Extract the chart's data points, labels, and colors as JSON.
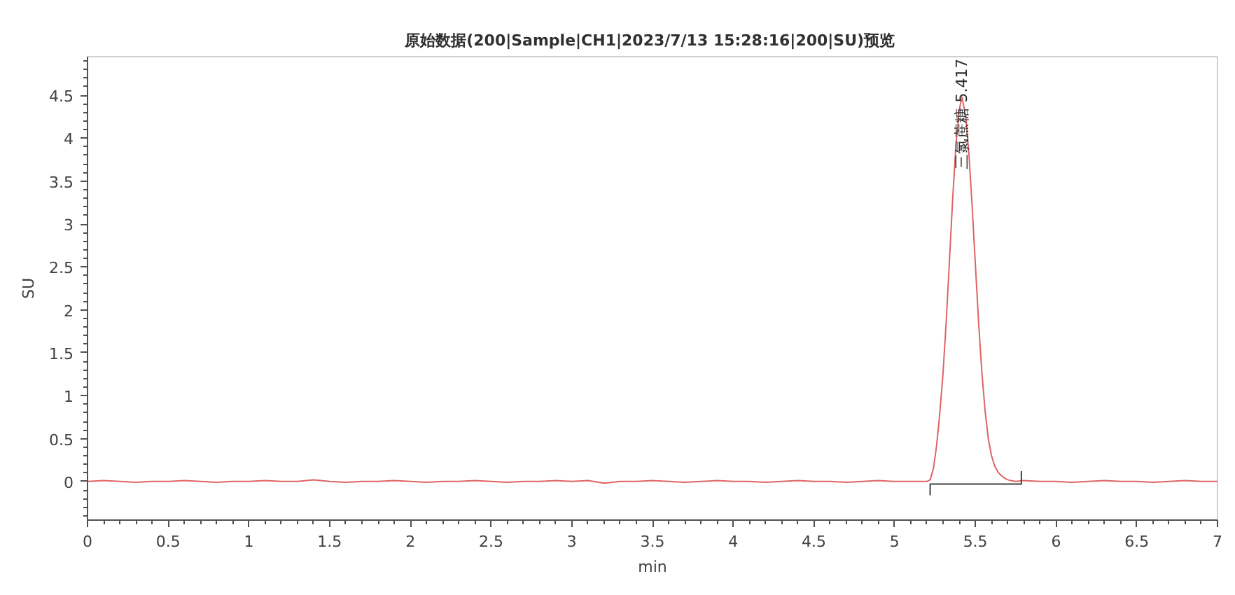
{
  "chart_data": {
    "type": "line",
    "title": "原始数据(200|Sample|CH1|2023/7/13  15:28:16|200|SU)预览",
    "xlabel": "min",
    "ylabel": "SU",
    "xlim": [
      0,
      7
    ],
    "ylim": [
      -0.45,
      4.95
    ],
    "xticks": [
      0,
      0.5,
      1,
      1.5,
      2,
      2.5,
      3,
      3.5,
      4,
      4.5,
      5,
      5.5,
      6,
      6.5,
      7
    ],
    "yticks": [
      0,
      0.5,
      1,
      1.5,
      2,
      2.5,
      3,
      3.5,
      4,
      4.5
    ],
    "line_style": "solid",
    "annotations": [
      {
        "text": "三氯蔗糖 5.417",
        "x": 5.417,
        "y": 4.48
      }
    ],
    "series": [
      {
        "color": "#e06464",
        "x": [
          0,
          0.1,
          0.2,
          0.3,
          0.4,
          0.5,
          0.6,
          0.7,
          0.8,
          0.9,
          1.0,
          1.1,
          1.2,
          1.3,
          1.4,
          1.5,
          1.6,
          1.7,
          1.8,
          1.9,
          2.0,
          2.1,
          2.2,
          2.3,
          2.4,
          2.5,
          2.6,
          2.7,
          2.8,
          2.9,
          3.0,
          3.1,
          3.2,
          3.3,
          3.4,
          3.5,
          3.6,
          3.7,
          3.8,
          3.9,
          4.0,
          4.1,
          4.2,
          4.3,
          4.4,
          4.5,
          4.6,
          4.7,
          4.8,
          4.9,
          5.0,
          5.1,
          5.2,
          5.22,
          5.24,
          5.26,
          5.28,
          5.3,
          5.32,
          5.34,
          5.36,
          5.38,
          5.4,
          5.417,
          5.44,
          5.46,
          5.48,
          5.5,
          5.52,
          5.54,
          5.56,
          5.58,
          5.6,
          5.62,
          5.64,
          5.66,
          5.68,
          5.7,
          5.72,
          5.75,
          5.8,
          5.9,
          6.0,
          6.1,
          6.2,
          6.3,
          6.4,
          6.5,
          6.6,
          6.7,
          6.8,
          6.9,
          7.0
        ],
        "values": [
          0.0,
          0.01,
          0.0,
          -0.01,
          0.0,
          0.0,
          0.01,
          0.0,
          -0.01,
          0.0,
          0.0,
          0.01,
          0.0,
          0.0,
          0.02,
          0.0,
          -0.01,
          0.0,
          0.0,
          0.01,
          0.0,
          -0.01,
          0.0,
          0.0,
          0.01,
          0.0,
          -0.01,
          0.0,
          0.0,
          0.01,
          0.0,
          0.01,
          -0.02,
          0.0,
          0.0,
          0.01,
          0.0,
          -0.01,
          0.0,
          0.01,
          0.0,
          0.0,
          -0.01,
          0.0,
          0.01,
          0.0,
          0.0,
          -0.01,
          0.0,
          0.01,
          0.0,
          0.0,
          0.0,
          0.02,
          0.15,
          0.42,
          0.8,
          1.27,
          1.88,
          2.59,
          3.31,
          3.93,
          4.33,
          4.48,
          4.26,
          3.82,
          3.21,
          2.53,
          1.86,
          1.28,
          0.83,
          0.5,
          0.3,
          0.18,
          0.11,
          0.07,
          0.04,
          0.02,
          0.01,
          0.0,
          0.01,
          0.0,
          0.0,
          -0.01,
          0.0,
          0.01,
          0.0,
          0.0,
          -0.01,
          0.0,
          0.01,
          0.0,
          0.0
        ]
      },
      {
        "color": "#404040",
        "x": [
          5.22,
          5.22,
          5.785,
          5.785
        ],
        "values": [
          -0.16,
          -0.03,
          -0.03,
          0.12
        ]
      }
    ]
  }
}
